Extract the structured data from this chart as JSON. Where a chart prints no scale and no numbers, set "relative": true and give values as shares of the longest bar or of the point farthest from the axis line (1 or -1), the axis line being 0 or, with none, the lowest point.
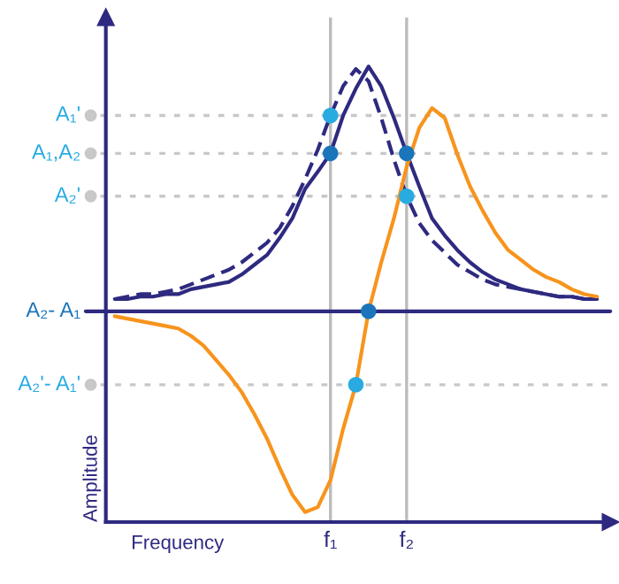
{
  "chart_data": {
    "type": "line",
    "relative": true,
    "xlabel": "Frequency",
    "ylabel": "Amplitude",
    "categories": [
      null,
      null,
      null,
      null,
      null,
      null,
      null,
      null,
      null,
      null,
      null,
      null,
      null,
      null,
      null,
      null,
      null,
      "f₁",
      null,
      null,
      null,
      null,
      null,
      "f₂",
      null,
      null,
      null,
      null,
      null,
      null,
      null,
      null,
      null,
      null,
      null,
      null,
      null,
      null,
      null
    ],
    "series": [
      {
        "color": "#2e2a80",
        "line_style": "solid",
        "values": [
          0.05,
          0.05,
          0.06,
          0.06,
          0.07,
          0.07,
          0.09,
          0.1,
          0.11,
          0.12,
          0.15,
          0.19,
          0.23,
          0.3,
          0.38,
          0.5,
          0.57,
          0.645,
          0.8,
          0.91,
          1.0,
          0.92,
          0.79,
          0.645,
          0.51,
          0.38,
          0.31,
          0.25,
          0.2,
          0.16,
          0.13,
          0.11,
          0.09,
          0.08,
          0.07,
          0.06,
          0.06,
          0.05,
          0.05
        ]
      },
      {
        "color": "#2e2a80",
        "line_style": "dashed",
        "values": [
          0.05,
          0.06,
          0.07,
          0.07,
          0.08,
          0.09,
          0.11,
          0.13,
          0.15,
          0.17,
          0.2,
          0.24,
          0.28,
          0.34,
          0.43,
          0.54,
          0.66,
          0.8,
          0.92,
          0.99,
          0.94,
          0.79,
          0.62,
          0.47,
          0.36,
          0.29,
          0.24,
          0.19,
          0.16,
          0.13,
          0.11,
          0.1,
          0.09,
          0.08,
          0.07,
          0.06,
          0.06,
          0.05,
          0.05
        ]
      },
      {
        "color": "#f7941d",
        "line_style": "solid",
        "values": [
          -0.02,
          -0.03,
          -0.04,
          -0.05,
          -0.06,
          -0.07,
          -0.1,
          -0.14,
          -0.2,
          -0.26,
          -0.33,
          -0.42,
          -0.52,
          -0.64,
          -0.75,
          -0.82,
          -0.8,
          -0.69,
          -0.48,
          -0.3,
          0.0,
          0.2,
          0.38,
          0.59,
          0.75,
          0.83,
          0.79,
          0.64,
          0.51,
          0.41,
          0.32,
          0.25,
          0.21,
          0.17,
          0.14,
          0.12,
          0.09,
          0.07,
          0.06
        ]
      },
      {
        "type": "scatter",
        "color": "#29abe2",
        "marker": "circle",
        "values": [
          null,
          null,
          null,
          null,
          null,
          null,
          null,
          null,
          null,
          null,
          null,
          null,
          null,
          null,
          null,
          null,
          null,
          0.8,
          null,
          -0.3,
          null,
          null,
          null,
          0.47,
          null,
          null,
          null,
          null,
          null,
          null,
          null,
          null,
          null,
          null,
          null,
          null,
          null,
          null,
          null
        ]
      },
      {
        "type": "scatter",
        "color": "#1b75bb",
        "marker": "circle",
        "values": [
          null,
          null,
          null,
          null,
          null,
          null,
          null,
          null,
          null,
          null,
          null,
          null,
          null,
          null,
          null,
          null,
          null,
          0.645,
          null,
          null,
          0.0,
          null,
          null,
          0.645,
          null,
          null,
          null,
          null,
          null,
          null,
          null,
          null,
          null,
          null,
          null,
          null,
          null,
          null,
          null
        ]
      }
    ],
    "ref_lines": [
      {
        "axis": "y",
        "value": 0.8,
        "label": "A₁'",
        "color": "#c8c8c8",
        "line_style": "dotted"
      },
      {
        "axis": "y",
        "value": 0.645,
        "label": "A₁,A₂",
        "color": "#c8c8c8",
        "line_style": "dotted"
      },
      {
        "axis": "y",
        "value": 0.47,
        "label": "A₂'",
        "color": "#c8c8c8",
        "line_style": "dotted"
      },
      {
        "axis": "y",
        "value": 0.0,
        "label": "A₂- A₁",
        "color": "#2e2a80",
        "line_style": "solid"
      },
      {
        "axis": "y",
        "value": -0.3,
        "label": "A₂'- A₁'",
        "color": "#c8c8c8",
        "line_style": "dotted"
      },
      {
        "axis": "x",
        "value": "f₁",
        "color": "#bbbbbb",
        "line_style": "solid"
      },
      {
        "axis": "x",
        "value": "f₂",
        "color": "#bbbbbb",
        "line_style": "solid"
      }
    ],
    "tick_labels": "x"
  }
}
